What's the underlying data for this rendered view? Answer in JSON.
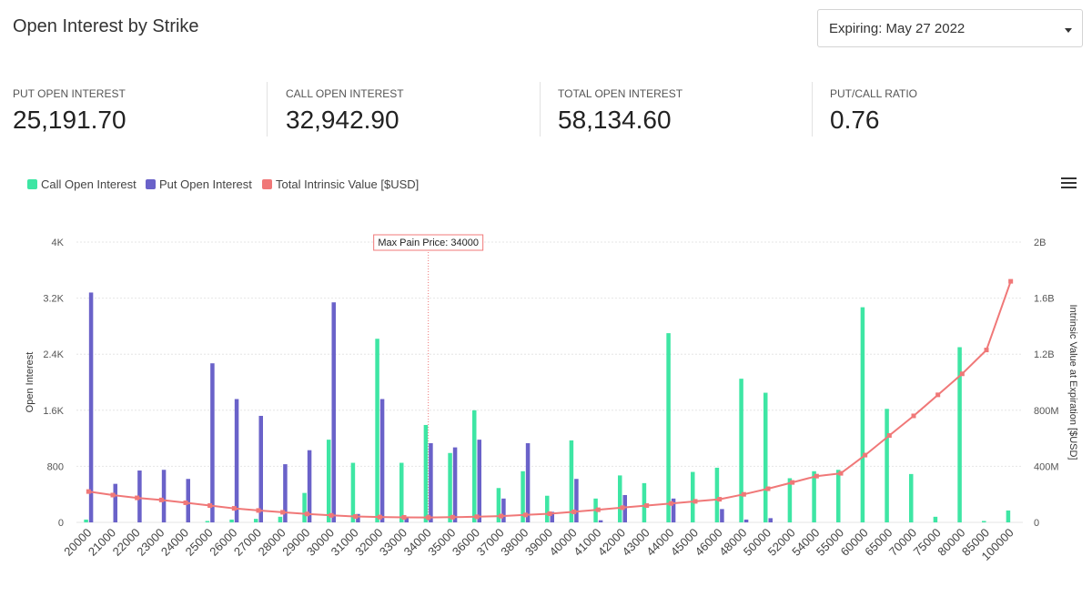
{
  "page": {
    "title": "Open Interest by Strike",
    "expiry_label": "Expiring: May 27 2022"
  },
  "stats": [
    {
      "label": "PUT OPEN INTEREST",
      "value": "25,191.70"
    },
    {
      "label": "CALL OPEN INTEREST",
      "value": "32,942.90"
    },
    {
      "label": "TOTAL OPEN INTEREST",
      "value": "58,134.60"
    },
    {
      "label": "PUT/CALL RATIO",
      "value": "0.76"
    }
  ],
  "icons": {
    "menu": "hamburger-menu-icon",
    "dropdown": "caret-down-icon"
  },
  "chart_data": {
    "type": "bar",
    "categories": [
      "20000",
      "21000",
      "22000",
      "23000",
      "24000",
      "25000",
      "26000",
      "27000",
      "28000",
      "29000",
      "30000",
      "31000",
      "32000",
      "33000",
      "34000",
      "35000",
      "36000",
      "37000",
      "38000",
      "39000",
      "40000",
      "41000",
      "42000",
      "43000",
      "44000",
      "45000",
      "46000",
      "48000",
      "50000",
      "52000",
      "54000",
      "55000",
      "60000",
      "65000",
      "70000",
      "75000",
      "80000",
      "85000",
      "100000"
    ],
    "series": [
      {
        "name": "Call Open Interest",
        "type": "bar",
        "axis": "left",
        "color": "#3ee6a4",
        "values": [
          40,
          0,
          0,
          0,
          0,
          20,
          40,
          50,
          80,
          420,
          1180,
          850,
          2620,
          850,
          1390,
          990,
          1600,
          490,
          730,
          380,
          1170,
          340,
          670,
          560,
          2700,
          720,
          780,
          2050,
          1850,
          630,
          730,
          750,
          3070,
          1620,
          690,
          80,
          2500,
          20,
          170
        ]
      },
      {
        "name": "Put Open Interest",
        "type": "bar",
        "axis": "left",
        "color": "#6a62c9",
        "values": [
          3280,
          550,
          740,
          750,
          620,
          2270,
          1760,
          1520,
          830,
          1030,
          3140,
          120,
          1760,
          80,
          1130,
          1070,
          1180,
          340,
          1130,
          150,
          620,
          30,
          390,
          0,
          340,
          0,
          190,
          40,
          60,
          0,
          0,
          0,
          0,
          0,
          0,
          0,
          0,
          0,
          0
        ]
      },
      {
        "name": "Total Intrinsic Value [$USD]",
        "type": "line",
        "axis": "right",
        "color": "#f07878",
        "values": [
          220000000,
          195000000,
          175000000,
          160000000,
          140000000,
          120000000,
          100000000,
          85000000,
          72000000,
          60000000,
          50000000,
          42000000,
          38000000,
          36000000,
          35000000,
          37000000,
          40000000,
          45000000,
          53000000,
          62000000,
          75000000,
          90000000,
          105000000,
          120000000,
          135000000,
          150000000,
          165000000,
          200000000,
          240000000,
          285000000,
          330000000,
          350000000,
          480000000,
          620000000,
          760000000,
          910000000,
          1060000000,
          1230000000,
          1720000000
        ]
      }
    ],
    "y_left": {
      "label": "Open Interest",
      "ticks": [
        "0",
        "800",
        "1.6K",
        "2.4K",
        "3.2K",
        "4K"
      ],
      "range": [
        0,
        4000
      ]
    },
    "y_right": {
      "label": "Intrinsic Value at Expiration [$USD]",
      "ticks": [
        "0",
        "400M",
        "800M",
        "1.2B",
        "1.6B",
        "2B"
      ],
      "range": [
        0,
        2000000000
      ]
    },
    "annotation": {
      "text": "Max Pain Price: 34000",
      "category": "34000"
    },
    "legend_position": "top-left",
    "grid": true
  }
}
